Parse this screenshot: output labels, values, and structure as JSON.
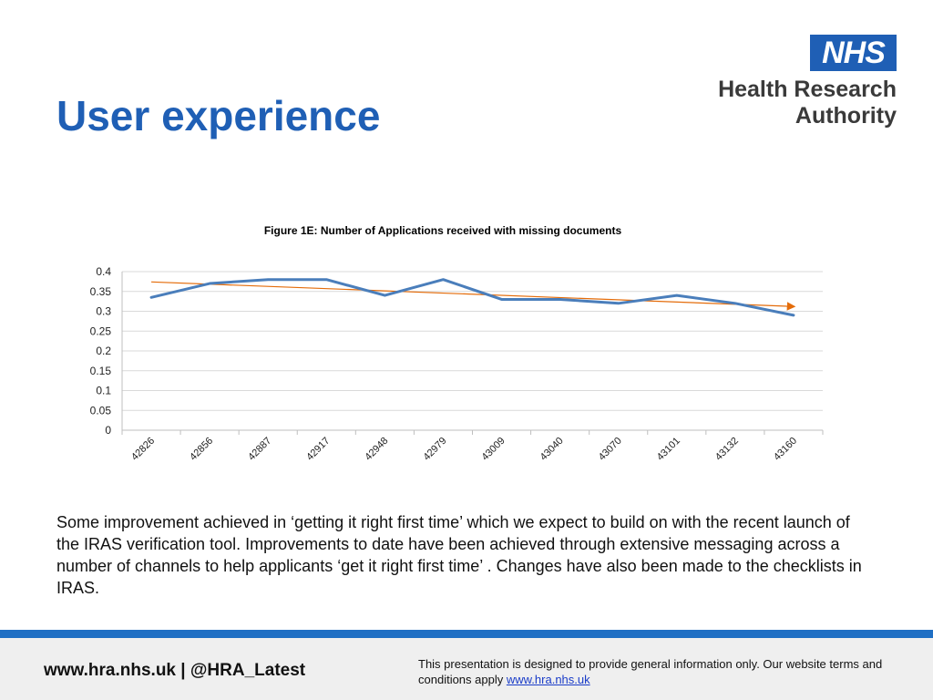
{
  "slide": {
    "title": "User experience",
    "body_text": "Some improvement achieved in ‘getting it right first time’ which we expect to build on with the recent launch of the IRAS verification tool. Improvements to date have been achieved through extensive messaging across a number of channels to help applicants ‘get it right first time’ . Changes have also been made to the checklists in IRAS."
  },
  "logo": {
    "badge": "NHS",
    "line1": "Health Research",
    "line2": "Authority",
    "badge_color": "#1f5fb5"
  },
  "footer": {
    "site": "www.hra.nhs.uk",
    "separator": "|",
    "handle": "@HRA_Latest",
    "disclaimer": "This presentation is designed to provide general information only. Our website terms and conditions apply",
    "link_text": "www.hra.nhs.uk",
    "bar_color": "#1f6fc4"
  },
  "chart_data": {
    "type": "line",
    "title": "Figure 1E: Number of Applications received with missing documents",
    "xlabel": "",
    "ylabel": "",
    "categories": [
      "42826",
      "42856",
      "42887",
      "42917",
      "42948",
      "42979",
      "43009",
      "43040",
      "43070",
      "43101",
      "43132",
      "43160"
    ],
    "series": [
      {
        "values": [
          0.335,
          0.37,
          0.38,
          0.38,
          0.34,
          0.38,
          0.33,
          0.33,
          0.32,
          0.34,
          0.32,
          0.29
        ],
        "color": "#4a7ebb"
      }
    ],
    "trendline": {
      "start": 0.374,
      "end": 0.312,
      "color": "#e46c0a",
      "arrow": true
    },
    "yticks": [
      "0",
      "0.05",
      "0.1",
      "0.15",
      "0.2",
      "0.25",
      "0.3",
      "0.35",
      "0.4"
    ],
    "ylim": [
      0,
      0.4
    ],
    "grid": true,
    "legend": "none"
  }
}
